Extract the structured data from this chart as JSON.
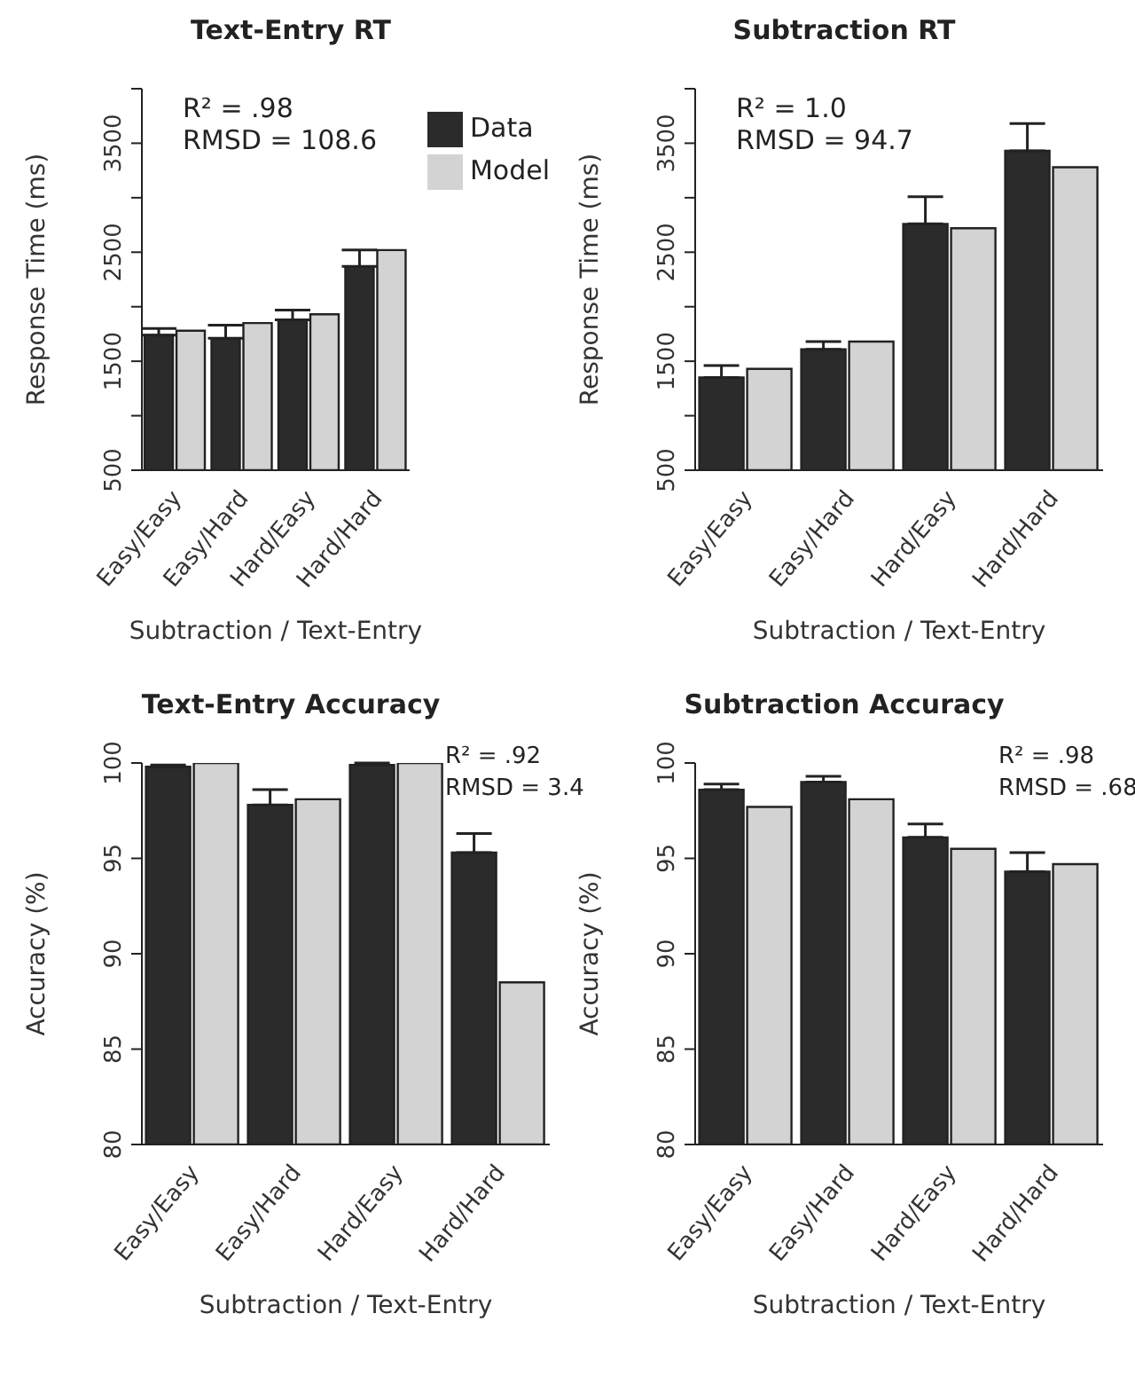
{
  "chart_data": [
    {
      "type": "bar",
      "title": "Text-Entry RT",
      "xlabel": "Subtraction / Text-Entry",
      "ylabel": "Response Time (ms)",
      "categories": [
        "Easy/Easy",
        "Easy/Hard",
        "Hard/Easy",
        "Hard/Hard"
      ],
      "series": [
        {
          "name": "Data",
          "color": "#2b2b2b",
          "values": [
            1740,
            1710,
            1880,
            2370
          ],
          "errors": [
            [
              1740,
              1800
            ],
            [
              1710,
              1830
            ],
            [
              1880,
              1970
            ],
            [
              2370,
              2520
            ]
          ]
        },
        {
          "name": "Model",
          "color": "#d3d3d3",
          "values": [
            1780,
            1850,
            1930,
            2520
          ]
        }
      ],
      "ylim": [
        500,
        4000
      ],
      "yticks": [
        500,
        {
          "value": 1000,
          "label": null
        },
        1500,
        {
          "value": 2000,
          "label": null
        },
        2500,
        {
          "value": 3000,
          "label": null
        },
        3500,
        {
          "value": 4000,
          "label": null
        }
      ],
      "annotations": [
        "R² = .98",
        "RMSD = 108.6"
      ],
      "legend": "top right",
      "grid": false
    },
    {
      "type": "bar",
      "title": "Subtraction RT",
      "xlabel": "Subtraction / Text-Entry",
      "ylabel": "Response Time (ms)",
      "categories": [
        "Easy/Easy",
        "Easy/Hard",
        "Hard/Easy",
        "Hard/Hard"
      ],
      "series": [
        {
          "color": "#2b2b2b",
          "values": [
            1350,
            1610,
            2760,
            3430
          ],
          "errors": [
            [
              1350,
              1460
            ],
            [
              1610,
              1680
            ],
            [
              2760,
              3010
            ],
            [
              3430,
              3680
            ]
          ]
        },
        {
          "color": "#d3d3d3",
          "values": [
            1430,
            1680,
            2720,
            3280
          ]
        }
      ],
      "ylim": [
        500,
        4000
      ],
      "yticks": [
        500,
        {
          "value": 1000,
          "label": null
        },
        1500,
        {
          "value": 2000,
          "label": null
        },
        2500,
        {
          "value": 3000,
          "label": null
        },
        3500,
        {
          "value": 4000,
          "label": null
        }
      ],
      "annotations": [
        "R² = 1.0",
        "RMSD = 94.7"
      ],
      "grid": false
    },
    {
      "type": "bar",
      "title": "Text-Entry Accuracy",
      "xlabel": "Subtraction / Text-Entry",
      "ylabel": "Accuracy (%)",
      "categories": [
        "Easy/Easy",
        "Easy/Hard",
        "Hard/Easy",
        "Hard/Hard"
      ],
      "series": [
        {
          "color": "#2b2b2b",
          "values": [
            99.8,
            97.8,
            99.9,
            95.3
          ],
          "errors": [
            [
              99.8,
              99.9
            ],
            [
              97.8,
              98.6
            ],
            [
              99.9,
              100
            ],
            [
              95.3,
              96.3
            ]
          ]
        },
        {
          "color": "#d3d3d3",
          "values": [
            100,
            98.1,
            100,
            88.5
          ]
        }
      ],
      "ylim": [
        80,
        100
      ],
      "yticks": [
        80,
        85,
        90,
        95,
        100
      ],
      "annotations": [
        "R² = .92",
        "RMSD = 3.4"
      ],
      "grid": false
    },
    {
      "type": "bar",
      "title": "Subtraction Accuracy",
      "xlabel": "Subtraction / Text-Entry",
      "ylabel": "Accuracy (%)",
      "categories": [
        "Easy/Easy",
        "Easy/Hard",
        "Hard/Easy",
        "Hard/Hard"
      ],
      "series": [
        {
          "color": "#2b2b2b",
          "values": [
            98.6,
            99.0,
            96.1,
            94.3
          ],
          "errors": [
            [
              98.6,
              98.9
            ],
            [
              99.0,
              99.3
            ],
            [
              96.1,
              96.8
            ],
            [
              94.3,
              95.3
            ]
          ]
        },
        {
          "color": "#d3d3d3",
          "values": [
            97.7,
            98.1,
            95.5,
            94.7
          ]
        }
      ],
      "ylim": [
        80,
        100
      ],
      "yticks": [
        80,
        85,
        90,
        95,
        100
      ],
      "annotations": [
        "R² = .98",
        "RMSD = .68"
      ],
      "grid": false
    }
  ]
}
